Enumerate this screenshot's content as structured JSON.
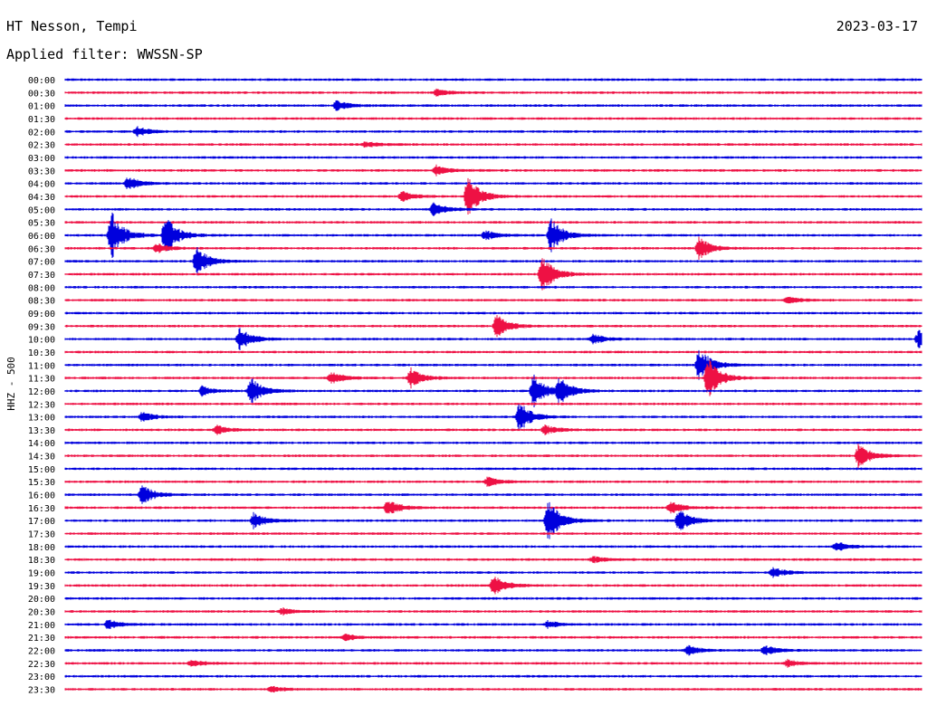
{
  "header": {
    "station": "HT Nesson, Tempi",
    "date": "2023-03-17",
    "filter": "Applied filter: WWSSN-SP"
  },
  "chart_data": {
    "type": "line",
    "subtype": "helicorder",
    "ylabel": "HHZ - 500",
    "row_labels": [
      "00:00",
      "00:30",
      "01:00",
      "01:30",
      "02:00",
      "02:30",
      "03:00",
      "03:30",
      "04:00",
      "04:30",
      "05:00",
      "05:30",
      "06:00",
      "06:30",
      "07:00",
      "07:30",
      "08:00",
      "08:30",
      "09:00",
      "09:30",
      "10:00",
      "10:30",
      "11:00",
      "11:30",
      "12:00",
      "12:30",
      "13:00",
      "13:30",
      "14:00",
      "14:30",
      "15:00",
      "15:30",
      "16:00",
      "16:30",
      "17:00",
      "17:30",
      "18:00",
      "18:30",
      "19:00",
      "19:30",
      "20:00",
      "20:30",
      "21:00",
      "21:30",
      "22:00",
      "22:30",
      "23:00",
      "23:30"
    ],
    "colors": [
      "#0000dd",
      "#ee1144"
    ],
    "grid": false,
    "legend": "none",
    "events": [
      {
        "row": "00:30",
        "minute": 13.0,
        "amp": 0.2
      },
      {
        "row": "01:00",
        "minute": 9.5,
        "amp": 0.3
      },
      {
        "row": "02:00",
        "minute": 2.5,
        "amp": 0.3
      },
      {
        "row": "02:30",
        "minute": 10.5,
        "amp": 0.2
      },
      {
        "row": "03:30",
        "minute": 13.0,
        "amp": 0.3
      },
      {
        "row": "04:00",
        "minute": 2.2,
        "amp": 0.4
      },
      {
        "row": "04:30",
        "minute": 14.1,
        "amp": 1.2
      },
      {
        "row": "04:30",
        "minute": 11.8,
        "amp": 0.3
      },
      {
        "row": "05:00",
        "minute": 12.9,
        "amp": 0.4
      },
      {
        "row": "06:00",
        "minute": 1.6,
        "amp": 1.5
      },
      {
        "row": "06:00",
        "minute": 3.5,
        "amp": 1.2
      },
      {
        "row": "06:00",
        "minute": 17.0,
        "amp": 1.1
      },
      {
        "row": "06:00",
        "minute": 14.7,
        "amp": 0.3
      },
      {
        "row": "06:30",
        "minute": 22.2,
        "amp": 0.7
      },
      {
        "row": "06:30",
        "minute": 3.2,
        "amp": 0.3
      },
      {
        "row": "07:00",
        "minute": 4.6,
        "amp": 0.9
      },
      {
        "row": "07:30",
        "minute": 16.7,
        "amp": 1.2
      },
      {
        "row": "08:30",
        "minute": 25.3,
        "amp": 0.2
      },
      {
        "row": "09:30",
        "minute": 15.1,
        "amp": 0.7
      },
      {
        "row": "10:00",
        "minute": 6.1,
        "amp": 0.7
      },
      {
        "row": "10:00",
        "minute": 29.9,
        "amp": 0.6
      },
      {
        "row": "10:00",
        "minute": 18.5,
        "amp": 0.3
      },
      {
        "row": "11:00",
        "minute": 22.2,
        "amp": 1.1
      },
      {
        "row": "11:30",
        "minute": 22.5,
        "amp": 1.3
      },
      {
        "row": "11:30",
        "minute": 12.1,
        "amp": 0.6
      },
      {
        "row": "11:30",
        "minute": 9.3,
        "amp": 0.4
      },
      {
        "row": "12:00",
        "minute": 6.5,
        "amp": 0.8
      },
      {
        "row": "12:00",
        "minute": 16.4,
        "amp": 1.0
      },
      {
        "row": "12:00",
        "minute": 17.3,
        "amp": 0.8
      },
      {
        "row": "12:00",
        "minute": 4.8,
        "amp": 0.3
      },
      {
        "row": "13:00",
        "minute": 15.9,
        "amp": 0.9
      },
      {
        "row": "13:00",
        "minute": 2.7,
        "amp": 0.3
      },
      {
        "row": "13:30",
        "minute": 16.8,
        "amp": 0.3
      },
      {
        "row": "13:30",
        "minute": 5.3,
        "amp": 0.3
      },
      {
        "row": "14:30",
        "minute": 27.8,
        "amp": 0.8
      },
      {
        "row": "15:30",
        "minute": 14.8,
        "amp": 0.3
      },
      {
        "row": "16:00",
        "minute": 2.7,
        "amp": 0.6
      },
      {
        "row": "16:30",
        "minute": 11.3,
        "amp": 0.5
      },
      {
        "row": "16:30",
        "minute": 21.2,
        "amp": 0.4
      },
      {
        "row": "17:00",
        "minute": 16.9,
        "amp": 1.3
      },
      {
        "row": "17:00",
        "minute": 21.5,
        "amp": 0.7
      },
      {
        "row": "17:00",
        "minute": 6.6,
        "amp": 0.5
      },
      {
        "row": "18:00",
        "minute": 27.0,
        "amp": 0.3
      },
      {
        "row": "18:30",
        "minute": 18.5,
        "amp": 0.2
      },
      {
        "row": "19:00",
        "minute": 24.8,
        "amp": 0.3
      },
      {
        "row": "19:30",
        "minute": 15.0,
        "amp": 0.6
      },
      {
        "row": "20:30",
        "minute": 7.6,
        "amp": 0.2
      },
      {
        "row": "21:00",
        "minute": 1.5,
        "amp": 0.3
      },
      {
        "row": "21:00",
        "minute": 16.9,
        "amp": 0.2
      },
      {
        "row": "21:30",
        "minute": 9.8,
        "amp": 0.2
      },
      {
        "row": "22:00",
        "minute": 21.8,
        "amp": 0.3
      },
      {
        "row": "22:00",
        "minute": 24.5,
        "amp": 0.3
      },
      {
        "row": "22:30",
        "minute": 4.4,
        "amp": 0.2
      },
      {
        "row": "22:30",
        "minute": 25.3,
        "amp": 0.2
      },
      {
        "row": "23:30",
        "minute": 7.2,
        "amp": 0.2
      }
    ]
  }
}
